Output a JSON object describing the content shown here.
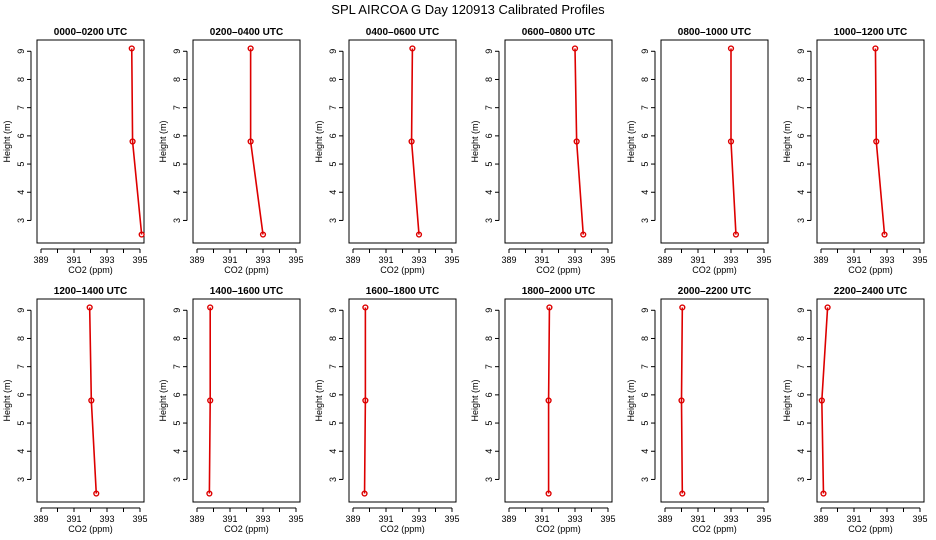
{
  "figure": {
    "title": "SPL AIRCOA G  Day 120913  Calibrated Profiles",
    "line_color": "#dd0000"
  },
  "chart_data": [
    {
      "type": "line",
      "title": "0000–0200 UTC",
      "xlabel": "CO2 (ppm)",
      "ylabel": "Height (m)",
      "xlim": [
        389,
        395
      ],
      "ylim": [
        2.2,
        9.4
      ],
      "xticks": [
        "389",
        "391",
        "393",
        "395"
      ],
      "yticks": [
        "3",
        "4",
        "5",
        "6",
        "7",
        "8",
        "9"
      ],
      "grid": false,
      "series": [
        {
          "x": [
            394.5,
            394.55,
            395.1
          ],
          "y": [
            9.1,
            5.8,
            2.5
          ]
        }
      ]
    },
    {
      "type": "line",
      "title": "0200–0400 UTC",
      "xlabel": "CO2 (ppm)",
      "ylabel": "Height (m)",
      "xlim": [
        389,
        395
      ],
      "ylim": [
        2.2,
        9.4
      ],
      "xticks": [
        "389",
        "391",
        "393",
        "395"
      ],
      "yticks": [
        "3",
        "4",
        "5",
        "6",
        "7",
        "8",
        "9"
      ],
      "grid": false,
      "series": [
        {
          "x": [
            392.25,
            392.25,
            393.0
          ],
          "y": [
            9.1,
            5.8,
            2.5
          ]
        }
      ]
    },
    {
      "type": "line",
      "title": "0400–0600 UTC",
      "xlabel": "CO2 (ppm)",
      "ylabel": "Height (m)",
      "xlim": [
        389,
        395
      ],
      "ylim": [
        2.2,
        9.4
      ],
      "xticks": [
        "389",
        "391",
        "393",
        "395"
      ],
      "yticks": [
        "3",
        "4",
        "5",
        "6",
        "7",
        "8",
        "9"
      ],
      "grid": false,
      "series": [
        {
          "x": [
            392.6,
            392.55,
            393.0
          ],
          "y": [
            9.1,
            5.8,
            2.5
          ]
        }
      ]
    },
    {
      "type": "line",
      "title": "0600–0800 UTC",
      "xlabel": "CO2 (ppm)",
      "ylabel": "Height (m)",
      "xlim": [
        389,
        395
      ],
      "ylim": [
        2.2,
        9.4
      ],
      "xticks": [
        "389",
        "391",
        "393",
        "395"
      ],
      "yticks": [
        "3",
        "4",
        "5",
        "6",
        "7",
        "8",
        "9"
      ],
      "grid": false,
      "series": [
        {
          "x": [
            393.0,
            393.1,
            393.5
          ],
          "y": [
            9.1,
            5.8,
            2.5
          ]
        }
      ]
    },
    {
      "type": "line",
      "title": "0800–1000 UTC",
      "xlabel": "CO2 (ppm)",
      "ylabel": "Height (m)",
      "xlim": [
        389,
        395
      ],
      "ylim": [
        2.2,
        9.4
      ],
      "xticks": [
        "389",
        "391",
        "393",
        "395"
      ],
      "yticks": [
        "3",
        "4",
        "5",
        "6",
        "7",
        "8",
        "9"
      ],
      "grid": false,
      "series": [
        {
          "x": [
            393.0,
            393.0,
            393.3
          ],
          "y": [
            9.1,
            5.8,
            2.5
          ]
        }
      ]
    },
    {
      "type": "line",
      "title": "1000–1200 UTC",
      "xlabel": "CO2 (ppm)",
      "ylabel": "Height (m)",
      "xlim": [
        389,
        395
      ],
      "ylim": [
        2.2,
        9.4
      ],
      "xticks": [
        "389",
        "391",
        "393",
        "395"
      ],
      "yticks": [
        "3",
        "4",
        "5",
        "6",
        "7",
        "8",
        "9"
      ],
      "grid": false,
      "series": [
        {
          "x": [
            392.3,
            392.35,
            392.85
          ],
          "y": [
            9.1,
            5.8,
            2.5
          ]
        }
      ]
    },
    {
      "type": "line",
      "title": "1200–1400 UTC",
      "xlabel": "CO2 (ppm)",
      "ylabel": "Height (m)",
      "xlim": [
        389,
        395
      ],
      "ylim": [
        2.2,
        9.4
      ],
      "xticks": [
        "389",
        "391",
        "393",
        "395"
      ],
      "yticks": [
        "3",
        "4",
        "5",
        "6",
        "7",
        "8",
        "9"
      ],
      "grid": false,
      "series": [
        {
          "x": [
            391.95,
            392.05,
            392.35
          ],
          "y": [
            9.1,
            5.8,
            2.5
          ]
        }
      ]
    },
    {
      "type": "line",
      "title": "1400–1600 UTC",
      "xlabel": "CO2 (ppm)",
      "ylabel": "Height (m)",
      "xlim": [
        389,
        395
      ],
      "ylim": [
        2.2,
        9.4
      ],
      "xticks": [
        "389",
        "391",
        "393",
        "395"
      ],
      "yticks": [
        "3",
        "4",
        "5",
        "6",
        "7",
        "8",
        "9"
      ],
      "grid": false,
      "series": [
        {
          "x": [
            389.8,
            389.8,
            389.75
          ],
          "y": [
            9.1,
            5.8,
            2.5
          ]
        }
      ]
    },
    {
      "type": "line",
      "title": "1600–1800 UTC",
      "xlabel": "CO2 (ppm)",
      "ylabel": "Height (m)",
      "xlim": [
        389,
        395
      ],
      "ylim": [
        2.2,
        9.4
      ],
      "xticks": [
        "389",
        "391",
        "393",
        "395"
      ],
      "yticks": [
        "3",
        "4",
        "5",
        "6",
        "7",
        "8",
        "9"
      ],
      "grid": false,
      "series": [
        {
          "x": [
            389.75,
            389.75,
            389.7
          ],
          "y": [
            9.1,
            5.8,
            2.5
          ]
        }
      ]
    },
    {
      "type": "line",
      "title": "1800–2000 UTC",
      "xlabel": "CO2 (ppm)",
      "ylabel": "Height (m)",
      "xlim": [
        389,
        395
      ],
      "ylim": [
        2.2,
        9.4
      ],
      "xticks": [
        "389",
        "391",
        "393",
        "395"
      ],
      "yticks": [
        "3",
        "4",
        "5",
        "6",
        "7",
        "8",
        "9"
      ],
      "grid": false,
      "series": [
        {
          "x": [
            391.45,
            391.4,
            391.4
          ],
          "y": [
            9.1,
            5.8,
            2.5
          ]
        }
      ]
    },
    {
      "type": "line",
      "title": "2000–2200 UTC",
      "xlabel": "CO2 (ppm)",
      "ylabel": "Height (m)",
      "xlim": [
        389,
        395
      ],
      "ylim": [
        2.2,
        9.4
      ],
      "xticks": [
        "389",
        "391",
        "393",
        "395"
      ],
      "yticks": [
        "3",
        "4",
        "5",
        "6",
        "7",
        "8",
        "9"
      ],
      "grid": false,
      "series": [
        {
          "x": [
            390.05,
            390.0,
            390.05
          ],
          "y": [
            9.1,
            5.8,
            2.5
          ]
        }
      ]
    },
    {
      "type": "line",
      "title": "2200–2400 UTC",
      "xlabel": "CO2 (ppm)",
      "ylabel": "Height (m)",
      "xlim": [
        389,
        395
      ],
      "ylim": [
        2.2,
        9.4
      ],
      "xticks": [
        "389",
        "391",
        "393",
        "395"
      ],
      "yticks": [
        "3",
        "4",
        "5",
        "6",
        "7",
        "8",
        "9"
      ],
      "grid": false,
      "series": [
        {
          "x": [
            389.4,
            389.05,
            389.15
          ],
          "y": [
            9.1,
            5.8,
            2.5
          ]
        }
      ]
    }
  ]
}
